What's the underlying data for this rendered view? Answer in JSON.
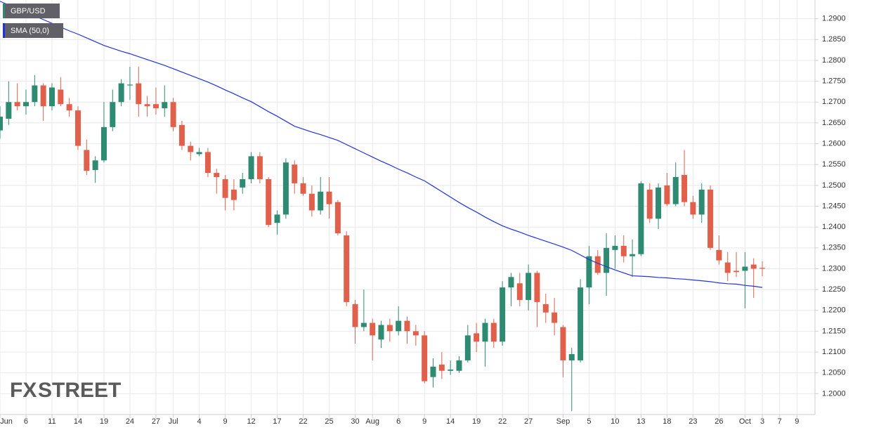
{
  "chart_data": {
    "type": "candlestick",
    "watermark": {
      "fx": "FX",
      "street": "STREET"
    },
    "categories": [
      "Jun",
      null,
      null,
      "6",
      null,
      null,
      "11",
      null,
      null,
      "14",
      null,
      null,
      "19",
      null,
      null,
      "24",
      null,
      null,
      "27",
      null,
      "Jul",
      null,
      null,
      "4",
      null,
      null,
      "9",
      null,
      null,
      "12",
      null,
      null,
      "17",
      null,
      null,
      "22",
      null,
      null,
      "25",
      null,
      null,
      "30",
      null,
      "Aug",
      null,
      null,
      "6",
      null,
      null,
      "9",
      null,
      null,
      "14",
      null,
      null,
      "19",
      null,
      null,
      "22",
      null,
      null,
      "27",
      null,
      null,
      null,
      "Sep",
      null,
      null,
      "5",
      null,
      null,
      "10",
      null,
      null,
      "13",
      null,
      null,
      "18",
      null,
      null,
      "23",
      null,
      null,
      "26",
      null,
      null,
      "Oct",
      null,
      "3",
      null,
      "7",
      null,
      "9"
    ],
    "ylim": [
      1.195,
      1.2945
    ],
    "yticks": [
      {
        "value": 1.2,
        "label": "1.2000"
      },
      {
        "value": 1.205,
        "label": "1.2050"
      },
      {
        "value": 1.21,
        "label": "1.2100"
      },
      {
        "value": 1.215,
        "label": "1.2150"
      },
      {
        "value": 1.22,
        "label": "1.2200"
      },
      {
        "value": 1.225,
        "label": "1.2250"
      },
      {
        "value": 1.23,
        "label": "1.2300"
      },
      {
        "value": 1.235,
        "label": "1.2350"
      },
      {
        "value": 1.24,
        "label": "1.2400"
      },
      {
        "value": 1.245,
        "label": "1.2450"
      },
      {
        "value": 1.25,
        "label": "1.2500"
      },
      {
        "value": 1.255,
        "label": "1.2550"
      },
      {
        "value": 1.26,
        "label": "1.2600"
      },
      {
        "value": 1.265,
        "label": "1.2650"
      },
      {
        "value": 1.27,
        "label": "1.2700"
      },
      {
        "value": 1.275,
        "label": "1.2750"
      },
      {
        "value": 1.28,
        "label": "1.2800"
      },
      {
        "value": 1.285,
        "label": "1.2850"
      },
      {
        "value": 1.29,
        "label": "1.2900"
      }
    ],
    "grid": true,
    "series": [
      {
        "name": "GBP/USD",
        "color": "#2f8a72",
        "up_color": "#2f8a72",
        "down_color": "#e0604c",
        "open": [
          1.2632,
          1.266,
          1.27,
          1.269,
          1.27,
          1.274,
          1.269,
          1.273,
          1.2695,
          1.268,
          1.2585,
          1.2537,
          1.256,
          1.264,
          1.27,
          1.274,
          1.2745,
          1.2695,
          1.2695,
          1.2685,
          1.27,
          1.2645,
          1.2595,
          1.2575,
          1.258,
          1.253,
          1.2515,
          1.249,
          1.2495,
          1.2515,
          1.257,
          1.2515,
          1.241,
          1.243,
          1.255,
          1.2505,
          1.248,
          1.244,
          1.2485,
          1.246,
          1.238,
          1.2215,
          1.216,
          1.217,
          1.213,
          1.2165,
          1.215,
          1.2175,
          1.215,
          1.214,
          1.204,
          1.207,
          1.2055,
          1.2055,
          1.208,
          1.2145,
          1.2125,
          1.217,
          1.2125,
          1.2255,
          1.2265,
          1.2225,
          1.229,
          1.2215,
          1.2195,
          1.216,
          1.208,
          1.208,
          1.2255,
          1.233,
          1.229,
          1.2345,
          1.2355,
          1.233,
          1.2335,
          1.249,
          1.242,
          1.25,
          1.2455,
          1.2525,
          1.246,
          1.243,
          1.249,
          1.2345,
          1.2315,
          1.2295,
          1.2295,
          1.231,
          1.2302,
          null,
          null,
          null,
          null
        ],
        "high": [
          1.269,
          1.275,
          1.2745,
          1.273,
          1.2765,
          1.2745,
          1.2745,
          1.276,
          1.271,
          1.269,
          1.261,
          1.257,
          1.27,
          1.273,
          1.2755,
          1.2785,
          1.2785,
          1.2715,
          1.2735,
          1.274,
          1.271,
          1.2655,
          1.2605,
          1.259,
          1.259,
          1.254,
          1.2525,
          1.2515,
          1.253,
          1.258,
          1.258,
          1.252,
          1.244,
          1.2565,
          1.256,
          1.252,
          1.25,
          1.252,
          1.252,
          1.2465,
          1.239,
          1.2225,
          1.225,
          1.218,
          1.2175,
          1.218,
          1.221,
          1.2185,
          1.2165,
          1.215,
          1.2085,
          1.21,
          1.208,
          1.209,
          1.2165,
          1.217,
          1.218,
          1.218,
          1.227,
          1.229,
          1.229,
          1.231,
          1.2295,
          1.224,
          1.223,
          1.2165,
          1.211,
          1.2275,
          1.2355,
          1.2345,
          1.2385,
          1.238,
          1.238,
          1.237,
          1.251,
          1.2505,
          1.2505,
          1.253,
          1.2555,
          1.2585,
          1.2475,
          1.2505,
          1.25,
          1.238,
          1.234,
          1.234,
          1.234,
          1.2325,
          1.2318,
          null,
          null,
          null,
          null
        ],
        "low": [
          1.2612,
          1.2645,
          1.268,
          1.267,
          1.269,
          1.2655,
          1.268,
          1.269,
          1.2665,
          1.2585,
          1.2525,
          1.2506,
          1.2555,
          1.263,
          1.269,
          1.2705,
          1.2665,
          1.2665,
          1.267,
          1.2665,
          1.263,
          1.2585,
          1.256,
          1.257,
          1.252,
          1.248,
          1.244,
          1.244,
          1.248,
          1.2505,
          1.2505,
          1.24,
          1.2382,
          1.242,
          1.248,
          1.2475,
          1.2425,
          1.243,
          1.242,
          1.238,
          1.221,
          1.212,
          1.215,
          1.208,
          1.211,
          1.2125,
          1.214,
          1.212,
          1.2115,
          1.2025,
          1.2015,
          1.2035,
          1.2045,
          1.205,
          1.2075,
          1.21,
          1.2065,
          1.211,
          1.2115,
          1.221,
          1.221,
          1.22,
          1.216,
          1.217,
          1.214,
          1.204,
          1.1958,
          1.2075,
          1.2215,
          1.2285,
          1.2235,
          1.23,
          1.2315,
          1.228,
          1.233,
          1.241,
          1.2395,
          1.245,
          1.245,
          1.245,
          1.242,
          1.241,
          1.2345,
          1.231,
          1.227,
          1.228,
          1.2205,
          1.223,
          1.2282,
          null,
          null,
          null,
          null
        ],
        "close": [
          1.2665,
          1.27,
          1.269,
          1.27,
          1.274,
          1.269,
          1.2735,
          1.2695,
          1.268,
          1.2595,
          1.2535,
          1.256,
          1.264,
          1.27,
          1.2745,
          1.2742,
          1.2695,
          1.269,
          1.2685,
          1.27,
          1.264,
          1.2595,
          1.258,
          1.258,
          1.253,
          1.252,
          1.247,
          1.2465,
          1.2515,
          1.257,
          1.2515,
          1.2405,
          1.243,
          1.2555,
          1.2505,
          1.248,
          1.244,
          1.2485,
          1.2455,
          1.2385,
          1.222,
          1.216,
          1.217,
          1.214,
          1.2165,
          1.215,
          1.2175,
          1.215,
          1.214,
          1.203,
          1.2065,
          1.2055,
          1.2058,
          1.208,
          1.214,
          1.2125,
          1.217,
          1.2125,
          1.2255,
          1.228,
          1.2225,
          1.229,
          1.222,
          1.2195,
          1.217,
          1.208,
          1.2095,
          1.2255,
          1.233,
          1.229,
          1.235,
          1.2355,
          1.233,
          1.2335,
          1.2505,
          1.242,
          1.2495,
          1.2455,
          1.252,
          1.246,
          1.243,
          1.249,
          1.235,
          1.232,
          1.229,
          1.2292,
          1.2305,
          1.23,
          1.23,
          null,
          null,
          null,
          null
        ]
      },
      {
        "name": "SMA (50,0)",
        "type": "line",
        "color": "#2233dd",
        "values": [
          1.2942,
          1.2933,
          1.2924,
          1.2916,
          1.2907,
          1.2898,
          1.2889,
          1.288,
          1.2871,
          1.2863,
          1.2854,
          1.2845,
          1.2836,
          1.2829,
          1.2822,
          1.2816,
          1.2809,
          1.2802,
          1.2795,
          1.2788,
          1.278,
          1.2772,
          1.2764,
          1.2756,
          1.2748,
          1.2739,
          1.2729,
          1.272,
          1.271,
          1.2701,
          1.2689,
          1.2677,
          1.2666,
          1.2654,
          1.2642,
          1.2635,
          1.2628,
          1.2622,
          1.2615,
          1.2608,
          1.2598,
          1.2588,
          1.2578,
          1.2568,
          1.2558,
          1.2549,
          1.2539,
          1.253,
          1.252,
          1.2511,
          1.2498,
          1.2485,
          1.2472,
          1.2459,
          1.2447,
          1.2436,
          1.2424,
          1.2413,
          1.2403,
          1.2395,
          1.2388,
          1.238,
          1.2373,
          1.2366,
          1.2359,
          1.2352,
          1.2344,
          1.2333,
          1.2322,
          1.2313,
          1.2305,
          1.2297,
          1.229,
          1.2283,
          1.2282,
          1.2281,
          1.2279,
          1.2278,
          1.2276,
          1.2275,
          1.2273,
          1.2271,
          1.2269,
          1.2266,
          1.2264,
          1.2263,
          1.226,
          1.2258,
          1.2255,
          null,
          null,
          null,
          null
        ]
      }
    ]
  }
}
